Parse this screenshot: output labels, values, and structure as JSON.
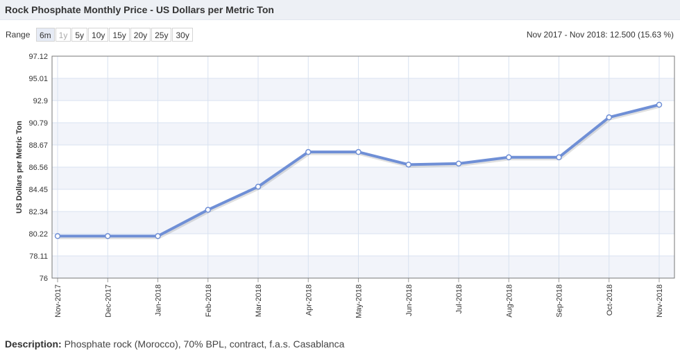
{
  "header": {
    "title": "Rock Phosphate Monthly Price - US Dollars per Metric Ton"
  },
  "range": {
    "label": "Range",
    "buttons": [
      {
        "label": "6m",
        "state": "active"
      },
      {
        "label": "1y",
        "state": "disabled"
      },
      {
        "label": "5y",
        "state": "normal"
      },
      {
        "label": "10y",
        "state": "normal"
      },
      {
        "label": "15y",
        "state": "normal"
      },
      {
        "label": "20y",
        "state": "normal"
      },
      {
        "label": "25y",
        "state": "normal"
      },
      {
        "label": "30y",
        "state": "normal"
      }
    ],
    "summary": "Nov 2017 - Nov 2018: 12.500 (15.63 %)"
  },
  "chart_data": {
    "type": "line",
    "ylabel": "US Dollars per Metric Ton",
    "ylim": [
      76,
      97.12
    ],
    "yticks": [
      "97.12",
      "95.01",
      "92.9",
      "90.79",
      "88.67",
      "86.56",
      "84.45",
      "82.34",
      "80.22",
      "78.11",
      "76"
    ],
    "categories": [
      "Nov-2017",
      "Dec-2017",
      "Jan-2018",
      "Feb-2018",
      "Mar-2018",
      "Apr-2018",
      "May-2018",
      "Jun-2018",
      "Jul-2018",
      "Aug-2018",
      "Sep-2018",
      "Oct-2018",
      "Nov-2018"
    ],
    "series": [
      {
        "values": [
          80.0,
          80.0,
          80.0,
          82.5,
          84.7,
          88.0,
          88.0,
          86.8,
          86.9,
          87.5,
          87.5,
          91.3,
          92.5
        ]
      }
    ],
    "grid": true,
    "colors": {
      "line": "#6f8fd6",
      "band": "#f2f4fa",
      "grid": "#d8e2f0",
      "axis": "#999999"
    }
  },
  "footer": {
    "description_label": "Description:",
    "description_text": "Phosphate rock (Morocco), 70% BPL, contract, f.a.s. Casablanca"
  }
}
